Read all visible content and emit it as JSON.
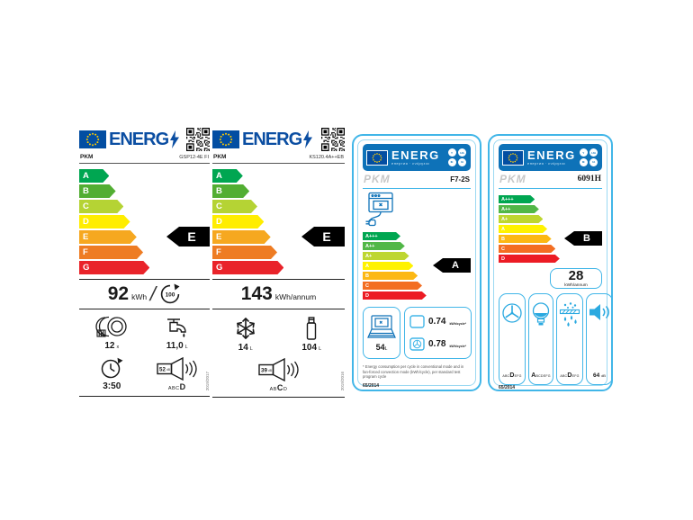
{
  "colors": {
    "eu_blue": "#034ea2",
    "energ_blue": "#0b4ea2",
    "frame_blue": "#41b6e8",
    "header_blue": "#0e72b8"
  },
  "dishwasher": {
    "logo": "ENERG",
    "brand": "PKM",
    "model": "GSP12-4E FI",
    "scale": [
      "A",
      "B",
      "C",
      "D",
      "E",
      "F",
      "G"
    ],
    "rating": "E",
    "energy_value": "92",
    "energy_unit": "kWh",
    "per_cycles": "100",
    "place_settings_value": "12",
    "place_settings_unit": "x",
    "water_value": "11,0",
    "water_unit": "L",
    "duration": "3:50",
    "noise_value": "52",
    "noise_unit": "dB",
    "noise_scale_pre": "ABC",
    "noise_class": "D",
    "noise_scale_post": "",
    "regulation": "2019/2017"
  },
  "fridge": {
    "logo": "ENERG",
    "brand": "PKM",
    "model": "KS120.4A++EB",
    "scale": [
      "A",
      "B",
      "C",
      "D",
      "E",
      "F",
      "G"
    ],
    "rating": "E",
    "energy_value": "143",
    "energy_unit": "kWh/annum",
    "freezer_value": "14",
    "freezer_unit": "L",
    "fresh_value": "104",
    "fresh_unit": "L",
    "noise_value": "39",
    "noise_unit": "dB",
    "noise_scale_pre": "AB",
    "noise_class": "C",
    "noise_scale_post": "D",
    "regulation": "2019/2016"
  },
  "oven": {
    "header": "ENERG",
    "header_sub": "енергия · ενέργεια",
    "badges": [
      "Y",
      "IJA",
      "IE",
      "IA"
    ],
    "brand": "PKM",
    "model": "F7-2S",
    "scale": [
      "A+++",
      "A++",
      "A+",
      "A",
      "B",
      "C",
      "D"
    ],
    "rating": "A",
    "volume_value": "54",
    "volume_unit": "L",
    "conventional_value": "0.74",
    "fan_value": "0.78",
    "cycle_unit": "kWh/cycle*",
    "footnote": "* Energy consumption per cycle in conventional mode and in fan-forced convection mode (kWh/cycle), per standard test program cycle",
    "regulation": "65/2014"
  },
  "hood": {
    "header": "ENERG",
    "header_sub": "енергия · ενέργεια",
    "badges": [
      "Y",
      "IJA",
      "IE",
      "IA"
    ],
    "brand": "PKM",
    "model": "6091H",
    "scale": [
      "A+++",
      "A++",
      "A+",
      "A",
      "B",
      "C",
      "D"
    ],
    "rating": "B",
    "energy_value": "28",
    "energy_unit": "kWh/annum",
    "fan_class": {
      "pre": "ABC",
      "cls": "D",
      "post": "EFG"
    },
    "light_class": {
      "pre": "",
      "cls": "A",
      "post": "BCDEFG"
    },
    "grease_class": {
      "pre": "ABC",
      "cls": "D",
      "post": "EFG"
    },
    "noise_value": "64",
    "noise_unit": "dB",
    "regulation": "65/2014"
  }
}
